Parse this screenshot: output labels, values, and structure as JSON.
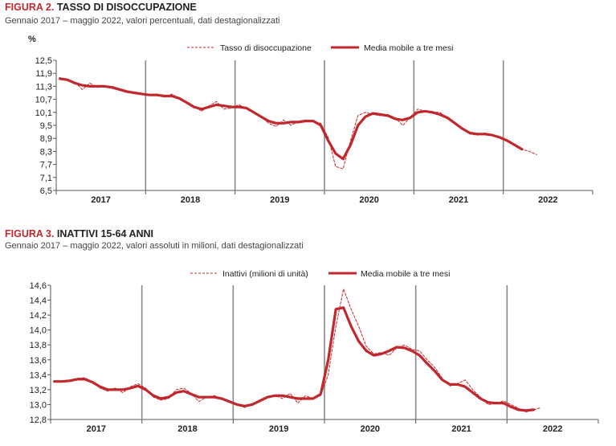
{
  "figures": [
    {
      "label": "FIGURA 2.",
      "title": "TASSO DI DISOCCUPAZIONE",
      "subtitle": "Gennaio 2017 – maggio 2022, valori percentuali, dati destagionalizzati"
    },
    {
      "label": "FIGURA 3.",
      "title": "INATTIVI 15-64 ANNI",
      "subtitle": "Gennaio 2017 – maggio 2022, valori assoluti in milioni, dati destagionalizzati"
    }
  ],
  "chart_data": [
    {
      "type": "line",
      "ylabel": "%",
      "ylim": [
        6.5,
        12.5
      ],
      "yticks": [
        "12,5",
        "11,9",
        "11,3",
        "10,7",
        "10,1",
        "9,5",
        "8,9",
        "8,3",
        "7,7",
        "7,1",
        "6,5"
      ],
      "x_categories": [
        "2017",
        "2018",
        "2019",
        "2020",
        "2021",
        "2022"
      ],
      "legend_position": "top",
      "color": "#c0282d",
      "series": [
        {
          "name": "Tasso di disoccupazione",
          "style": "dashed",
          "x": [
            "2017-01",
            "2017-02",
            "2017-03",
            "2017-04",
            "2017-05",
            "2017-06",
            "2017-07",
            "2017-08",
            "2017-09",
            "2017-10",
            "2017-11",
            "2017-12",
            "2018-01",
            "2018-02",
            "2018-03",
            "2018-04",
            "2018-05",
            "2018-06",
            "2018-07",
            "2018-08",
            "2018-09",
            "2018-10",
            "2018-11",
            "2018-12",
            "2019-01",
            "2019-02",
            "2019-03",
            "2019-04",
            "2019-05",
            "2019-06",
            "2019-07",
            "2019-08",
            "2019-09",
            "2019-10",
            "2019-11",
            "2019-12",
            "2020-01",
            "2020-02",
            "2020-03",
            "2020-04",
            "2020-05",
            "2020-06",
            "2020-07",
            "2020-08",
            "2020-09",
            "2020-10",
            "2020-11",
            "2020-12",
            "2021-01",
            "2021-02",
            "2021-03",
            "2021-04",
            "2021-05",
            "2021-06",
            "2021-07",
            "2021-08",
            "2021-09",
            "2021-10",
            "2021-11",
            "2021-12",
            "2022-01",
            "2022-02",
            "2022-03",
            "2022-04",
            "2022-05"
          ],
          "values": [
            11.7,
            11.6,
            11.5,
            11.15,
            11.45,
            11.25,
            11.3,
            11.3,
            11.2,
            11.1,
            11.0,
            10.95,
            10.9,
            10.95,
            10.8,
            10.95,
            10.75,
            10.55,
            10.4,
            10.15,
            10.4,
            10.6,
            10.25,
            10.3,
            10.45,
            10.3,
            10.1,
            9.9,
            9.6,
            9.45,
            9.75,
            9.5,
            9.7,
            9.75,
            9.7,
            9.6,
            8.95,
            7.6,
            7.5,
            8.8,
            9.95,
            10.1,
            10.0,
            9.95,
            10.0,
            9.85,
            9.5,
            9.85,
            10.25,
            10.15,
            10.1,
            10.1,
            9.85,
            9.6,
            9.35,
            9.1,
            9.05,
            9.15,
            9.05,
            9.0,
            8.8,
            8.65,
            8.4,
            8.3,
            8.15
          ]
        },
        {
          "name": "Media mobile a tre mesi",
          "style": "solid",
          "x": [
            "2017-01",
            "2017-02",
            "2017-03",
            "2017-04",
            "2017-05",
            "2017-06",
            "2017-07",
            "2017-08",
            "2017-09",
            "2017-10",
            "2017-11",
            "2017-12",
            "2018-01",
            "2018-02",
            "2018-03",
            "2018-04",
            "2018-05",
            "2018-06",
            "2018-07",
            "2018-08",
            "2018-09",
            "2018-10",
            "2018-11",
            "2018-12",
            "2019-01",
            "2019-02",
            "2019-03",
            "2019-04",
            "2019-05",
            "2019-06",
            "2019-07",
            "2019-08",
            "2019-09",
            "2019-10",
            "2019-11",
            "2019-12",
            "2020-01",
            "2020-02",
            "2020-03",
            "2020-04",
            "2020-05",
            "2020-06",
            "2020-07",
            "2020-08",
            "2020-09",
            "2020-10",
            "2020-11",
            "2020-12",
            "2021-01",
            "2021-02",
            "2021-03",
            "2021-04",
            "2021-05",
            "2021-06",
            "2021-07",
            "2021-08",
            "2021-09",
            "2021-10",
            "2021-11",
            "2021-12",
            "2022-01",
            "2022-02",
            "2022-03"
          ],
          "values": [
            11.65,
            11.6,
            11.45,
            11.35,
            11.3,
            11.3,
            11.3,
            11.25,
            11.15,
            11.05,
            11.0,
            10.95,
            10.9,
            10.9,
            10.85,
            10.85,
            10.75,
            10.55,
            10.35,
            10.25,
            10.35,
            10.45,
            10.4,
            10.35,
            10.35,
            10.3,
            10.1,
            9.9,
            9.7,
            9.6,
            9.6,
            9.65,
            9.65,
            9.7,
            9.7,
            9.5,
            8.8,
            8.2,
            7.95,
            8.6,
            9.5,
            9.9,
            10.05,
            10.0,
            9.95,
            9.8,
            9.75,
            9.85,
            10.1,
            10.15,
            10.1,
            10.0,
            9.85,
            9.6,
            9.35,
            9.15,
            9.1,
            9.1,
            9.05,
            8.95,
            8.8,
            8.6,
            8.4
          ]
        }
      ]
    },
    {
      "type": "line",
      "ylim": [
        12.8,
        14.6
      ],
      "yticks": [
        "14,6",
        "14,4",
        "14,2",
        "14,0",
        "13,8",
        "13,6",
        "13,4",
        "13,2",
        "13,0",
        "12,8"
      ],
      "x_categories": [
        "2017",
        "2018",
        "2019",
        "2020",
        "2021",
        "2022"
      ],
      "legend_position": "top",
      "color": "#c0282d",
      "series": [
        {
          "name": "Inattivi (milioni di unità)",
          "style": "dashed",
          "x": [
            "2017-01",
            "2017-02",
            "2017-03",
            "2017-04",
            "2017-05",
            "2017-06",
            "2017-07",
            "2017-08",
            "2017-09",
            "2017-10",
            "2017-11",
            "2017-12",
            "2018-01",
            "2018-02",
            "2018-03",
            "2018-04",
            "2018-05",
            "2018-06",
            "2018-07",
            "2018-08",
            "2018-09",
            "2018-10",
            "2018-11",
            "2018-12",
            "2019-01",
            "2019-02",
            "2019-03",
            "2019-04",
            "2019-05",
            "2019-06",
            "2019-07",
            "2019-08",
            "2019-09",
            "2019-10",
            "2019-11",
            "2019-12",
            "2020-01",
            "2020-02",
            "2020-03",
            "2020-04",
            "2020-05",
            "2020-06",
            "2020-07",
            "2020-08",
            "2020-09",
            "2020-10",
            "2020-11",
            "2020-12",
            "2021-01",
            "2021-02",
            "2021-03",
            "2021-04",
            "2021-05",
            "2021-06",
            "2021-07",
            "2021-08",
            "2021-09",
            "2021-10",
            "2021-11",
            "2021-12",
            "2022-01",
            "2022-02",
            "2022-03",
            "2022-04",
            "2022-05"
          ],
          "values": [
            13.32,
            13.3,
            13.33,
            13.35,
            13.36,
            13.3,
            13.22,
            13.18,
            13.22,
            13.16,
            13.24,
            13.28,
            13.22,
            13.1,
            13.06,
            13.08,
            13.2,
            13.22,
            13.15,
            13.04,
            13.1,
            13.12,
            13.08,
            13.04,
            13.0,
            12.96,
            13.0,
            13.06,
            13.1,
            13.12,
            13.08,
            13.15,
            13.02,
            13.12,
            13.08,
            13.12,
            13.4,
            14.05,
            14.55,
            14.28,
            14.05,
            13.78,
            13.68,
            13.7,
            13.66,
            13.76,
            13.8,
            13.74,
            13.72,
            13.6,
            13.5,
            13.35,
            13.25,
            13.28,
            13.33,
            13.2,
            13.1,
            13.0,
            13.01,
            13.05,
            13.0,
            12.95,
            12.9,
            12.93,
            12.96
          ]
        },
        {
          "name": "Media mobile a tre mesi",
          "style": "solid",
          "x": [
            "2017-01",
            "2017-02",
            "2017-03",
            "2017-04",
            "2017-05",
            "2017-06",
            "2017-07",
            "2017-08",
            "2017-09",
            "2017-10",
            "2017-11",
            "2017-12",
            "2018-01",
            "2018-02",
            "2018-03",
            "2018-04",
            "2018-05",
            "2018-06",
            "2018-07",
            "2018-08",
            "2018-09",
            "2018-10",
            "2018-11",
            "2018-12",
            "2019-01",
            "2019-02",
            "2019-03",
            "2019-04",
            "2019-05",
            "2019-06",
            "2019-07",
            "2019-08",
            "2019-09",
            "2019-10",
            "2019-11",
            "2019-12",
            "2020-01",
            "2020-02",
            "2020-03",
            "2020-04",
            "2020-05",
            "2020-06",
            "2020-07",
            "2020-08",
            "2020-09",
            "2020-10",
            "2020-11",
            "2020-12",
            "2021-01",
            "2021-02",
            "2021-03",
            "2021-04",
            "2021-05",
            "2021-06",
            "2021-07",
            "2021-08",
            "2021-09",
            "2021-10",
            "2021-11",
            "2021-12",
            "2022-01",
            "2022-02",
            "2022-03",
            "2022-04"
          ],
          "values": [
            13.31,
            13.31,
            13.32,
            13.34,
            13.34,
            13.3,
            13.24,
            13.2,
            13.2,
            13.2,
            13.22,
            13.25,
            13.2,
            13.12,
            13.08,
            13.1,
            13.16,
            13.18,
            13.14,
            13.1,
            13.1,
            13.1,
            13.08,
            13.04,
            13.0,
            12.98,
            13.0,
            13.05,
            13.1,
            13.12,
            13.12,
            13.1,
            13.08,
            13.08,
            13.08,
            13.14,
            13.6,
            14.28,
            14.3,
            14.05,
            13.85,
            13.72,
            13.66,
            13.68,
            13.72,
            13.77,
            13.76,
            13.72,
            13.66,
            13.55,
            13.45,
            13.33,
            13.27,
            13.27,
            13.24,
            13.16,
            13.08,
            13.03,
            13.02,
            13.02,
            12.97,
            12.93,
            12.92,
            12.93
          ]
        }
      ]
    }
  ]
}
